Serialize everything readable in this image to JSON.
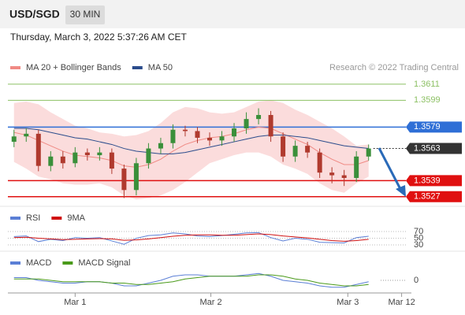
{
  "header": {
    "pair": "USD/SGD",
    "timeframe": "30 MIN",
    "datetime": "Thursday, March 3, 2022 5:37:26 AM CET"
  },
  "chart_data": [
    {
      "type": "candlestick",
      "source": "Research © 2022 Trading Central",
      "up_color": "#3a8f3a",
      "down_color": "#b03a2e",
      "ylim": [
        1.3521,
        1.3618
      ],
      "open": [
        1.3568,
        1.3572,
        1.3574,
        1.355,
        1.3557,
        1.3552,
        1.356,
        1.3558,
        1.356,
        1.3548,
        1.3532,
        1.3552,
        1.3563,
        1.3567,
        1.3577,
        1.3576,
        1.3571,
        1.3569,
        1.3572,
        1.3578,
        1.3585,
        1.3588,
        1.3572,
        1.3557,
        1.3565,
        1.356,
        1.3545,
        1.3543,
        1.3541,
        1.3557
      ],
      "high": [
        1.3577,
        1.3578,
        1.3577,
        1.3561,
        1.3561,
        1.3564,
        1.3563,
        1.3564,
        1.3563,
        1.3551,
        1.3556,
        1.3567,
        1.3571,
        1.3581,
        1.358,
        1.3579,
        1.3575,
        1.3576,
        1.3582,
        1.359,
        1.3593,
        1.3591,
        1.3575,
        1.3569,
        1.3568,
        1.3563,
        1.3549,
        1.3547,
        1.3561,
        1.3566
      ],
      "low": [
        1.3564,
        1.3568,
        1.3546,
        1.3546,
        1.3548,
        1.3549,
        1.3554,
        1.3554,
        1.3544,
        1.3526,
        1.3528,
        1.3548,
        1.3559,
        1.3563,
        1.3572,
        1.3567,
        1.3565,
        1.3565,
        1.3568,
        1.3574,
        1.3581,
        1.3568,
        1.3553,
        1.3553,
        1.3556,
        1.3541,
        1.3537,
        1.3535,
        1.3538,
        1.3554
      ],
      "close": [
        1.3572,
        1.3574,
        1.355,
        1.3557,
        1.3552,
        1.356,
        1.3558,
        1.356,
        1.3548,
        1.3532,
        1.3552,
        1.3563,
        1.3567,
        1.3577,
        1.3576,
        1.3571,
        1.3569,
        1.3572,
        1.3578,
        1.3585,
        1.3588,
        1.3572,
        1.3557,
        1.3565,
        1.356,
        1.3545,
        1.3543,
        1.3541,
        1.3557,
        1.3563
      ],
      "series": [
        {
          "name": "MA 20 + Bollinger Bands",
          "color": "#f08a84",
          "band_color": "#fbdcdc",
          "values": [
            1.3575,
            1.3573,
            1.3569,
            1.3565,
            1.3561,
            1.3558,
            1.3557,
            1.3556,
            1.3554,
            1.355,
            1.3549,
            1.3551,
            1.3555,
            1.3561,
            1.3566,
            1.3569,
            1.3571,
            1.3572,
            1.3574,
            1.3577,
            1.3579,
            1.3578,
            1.3574,
            1.357,
            1.3566,
            1.356,
            1.3555,
            1.3551,
            1.3551,
            1.3554
          ],
          "upper": [
            1.3597,
            1.3598,
            1.3596,
            1.359,
            1.3585,
            1.358,
            1.3578,
            1.3575,
            1.3574,
            1.3572,
            1.3573,
            1.3576,
            1.3582,
            1.359,
            1.3594,
            1.3593,
            1.359,
            1.3589,
            1.359,
            1.3594,
            1.3598,
            1.3599,
            1.3597,
            1.3592,
            1.3588,
            1.3583,
            1.3578,
            1.3572,
            1.3565,
            1.3566
          ],
          "lower": [
            1.3553,
            1.3548,
            1.3542,
            1.354,
            1.3537,
            1.3536,
            1.3536,
            1.3537,
            1.3534,
            1.3528,
            1.3525,
            1.3526,
            1.3528,
            1.3532,
            1.3538,
            1.3545,
            1.3552,
            1.3555,
            1.3558,
            1.356,
            1.356,
            1.3557,
            1.3551,
            1.3548,
            1.3544,
            1.3537,
            1.3532,
            1.353,
            1.3537,
            1.3542
          ]
        },
        {
          "name": "MA 50",
          "color": "#2b4c8c",
          "values": [
            1.3578,
            1.3578,
            1.3577,
            1.3575,
            1.3573,
            1.3571,
            1.357,
            1.3568,
            1.3566,
            1.3563,
            1.3561,
            1.356,
            1.3559,
            1.3559,
            1.356,
            1.3562,
            1.3564,
            1.3566,
            1.3568,
            1.357,
            1.3572,
            1.3573,
            1.3573,
            1.3572,
            1.3571,
            1.3569,
            1.3567,
            1.3565,
            1.3564,
            1.3563
          ]
        }
      ],
      "levels": [
        {
          "value": 1.3611,
          "color": "#8cc063",
          "dotted": false,
          "box": false
        },
        {
          "value": 1.3599,
          "color": "#8cc063",
          "dotted": false,
          "box": false
        },
        {
          "value": 1.3579,
          "color": "#2f6fd6",
          "dotted": false,
          "box": true
        },
        {
          "value": 1.3563,
          "color": "#333333",
          "dotted": true,
          "box": true
        },
        {
          "value": 1.3539,
          "color": "#e01010",
          "dotted": false,
          "box": true
        },
        {
          "value": 1.3527,
          "color": "#e01010",
          "dotted": false,
          "box": true
        }
      ]
    },
    {
      "type": "line",
      "ylim": [
        20,
        80
      ],
      "yticks": [
        70,
        50,
        30
      ],
      "grid": true,
      "series": [
        {
          "name": "RSI",
          "color": "#5b7fd6",
          "values": [
            55,
            57,
            40,
            47,
            43,
            52,
            50,
            52,
            42,
            32,
            50,
            58,
            60,
            66,
            63,
            57,
            55,
            58,
            62,
            66,
            67,
            52,
            42,
            50,
            47,
            38,
            37,
            36,
            52,
            56
          ]
        },
        {
          "name": "9MA",
          "color": "#d01010",
          "values": [
            52,
            53,
            50,
            48,
            46,
            47,
            48,
            49,
            48,
            44,
            45,
            48,
            52,
            56,
            59,
            60,
            60,
            59,
            59,
            61,
            63,
            61,
            57,
            54,
            51,
            47,
            43,
            41,
            43,
            47
          ]
        }
      ]
    },
    {
      "type": "line",
      "ylim": [
        -0.0008,
        0.0008
      ],
      "yticks": [
        0
      ],
      "grid": false,
      "xlim": [
        -0.5,
        32.5
      ],
      "xticks": [
        {
          "value": 5,
          "label": "Mar 1"
        },
        {
          "value": 16.1,
          "label": "Mar 2"
        },
        {
          "value": 27.3,
          "label": "Mar 3"
        },
        {
          "value": 31.7,
          "label": "Mar 12"
        }
      ],
      "series": [
        {
          "name": "MACD",
          "color": "#5b7fd6",
          "values": [
            0.0002,
            0.0002,
            0.0,
            -0.0001,
            -0.0002,
            -0.0002,
            -0.0001,
            -0.0001,
            -0.0002,
            -0.0004,
            -0.0004,
            -0.0002,
            0.0,
            0.0003,
            0.0004,
            0.0004,
            0.0003,
            0.0003,
            0.0003,
            0.0004,
            0.0005,
            0.0003,
            0.0,
            -0.0001,
            -0.0002,
            -0.0004,
            -0.0005,
            -0.0005,
            -0.0003,
            -0.0001
          ]
        },
        {
          "name": "MACD Signal",
          "color": "#4a9a1a",
          "values": [
            0.0001,
            0.0001,
            0.0001,
            0.0,
            -0.0001,
            -0.0001,
            -0.0001,
            -0.0001,
            -0.0002,
            -0.0002,
            -0.0003,
            -0.0003,
            -0.0002,
            -0.0001,
            0.0001,
            0.0002,
            0.0003,
            0.0003,
            0.0003,
            0.0003,
            0.0004,
            0.0004,
            0.0003,
            0.0001,
            0.0,
            -0.0002,
            -0.0003,
            -0.0004,
            -0.0004,
            -0.0003
          ]
        }
      ]
    }
  ]
}
